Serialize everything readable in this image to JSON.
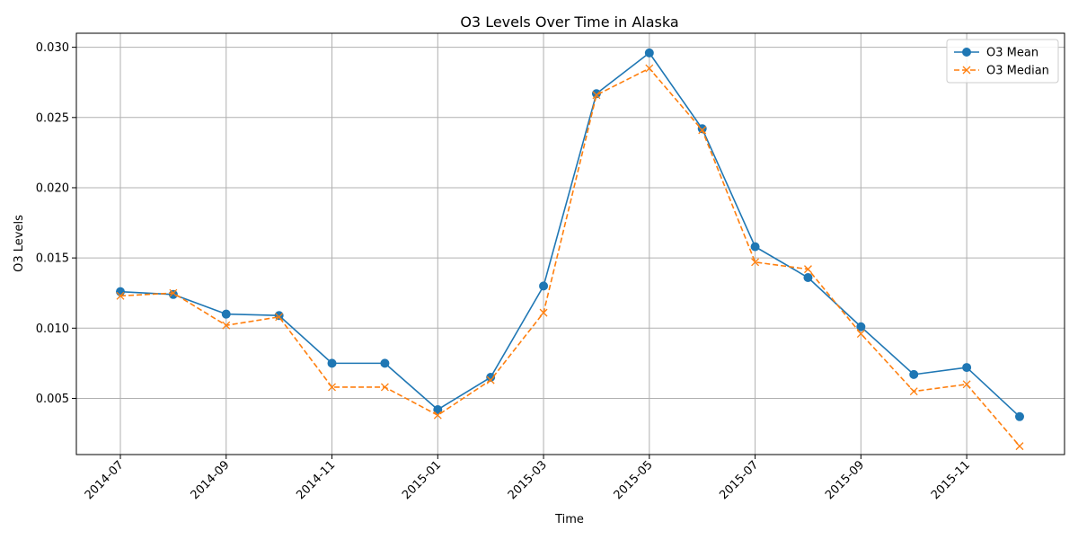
{
  "chart_data": {
    "type": "line",
    "title": "O3 Levels Over Time in Alaska",
    "xlabel": "Time",
    "ylabel": "O3 Levels",
    "x": [
      "2014-07",
      "2014-08",
      "2014-09",
      "2014-10",
      "2014-11",
      "2014-12",
      "2015-01",
      "2015-02",
      "2015-03",
      "2015-04",
      "2015-05",
      "2015-06",
      "2015-07",
      "2015-08",
      "2015-09",
      "2015-10",
      "2015-11",
      "2015-12"
    ],
    "x_ticks": [
      "2014-07",
      "2014-09",
      "2014-11",
      "2015-01",
      "2015-03",
      "2015-05",
      "2015-07",
      "2015-09",
      "2015-11"
    ],
    "y_ticks": [
      "0.005",
      "0.010",
      "0.015",
      "0.020",
      "0.025",
      "0.030"
    ],
    "ylim": [
      0.001,
      0.031
    ],
    "grid": true,
    "legend_position": "top-right",
    "series": [
      {
        "name": "O3 Mean",
        "color": "#1f77b4",
        "marker": "circle",
        "linestyle": "solid",
        "values": [
          0.0126,
          0.0124,
          0.011,
          0.0109,
          0.0075,
          0.0075,
          0.0042,
          0.0065,
          0.013,
          0.0267,
          0.0296,
          0.0242,
          0.0158,
          0.0136,
          0.0101,
          0.0067,
          0.0072,
          0.0037
        ]
      },
      {
        "name": "O3 Median",
        "color": "#ff7f0e",
        "marker": "x",
        "linestyle": "dashed",
        "values": [
          0.0123,
          0.0125,
          0.0102,
          0.0108,
          0.0058,
          0.0058,
          0.0038,
          0.0063,
          0.0111,
          0.0266,
          0.0285,
          0.0241,
          0.0147,
          0.0142,
          0.0096,
          0.0055,
          0.006,
          0.0016
        ]
      }
    ]
  }
}
